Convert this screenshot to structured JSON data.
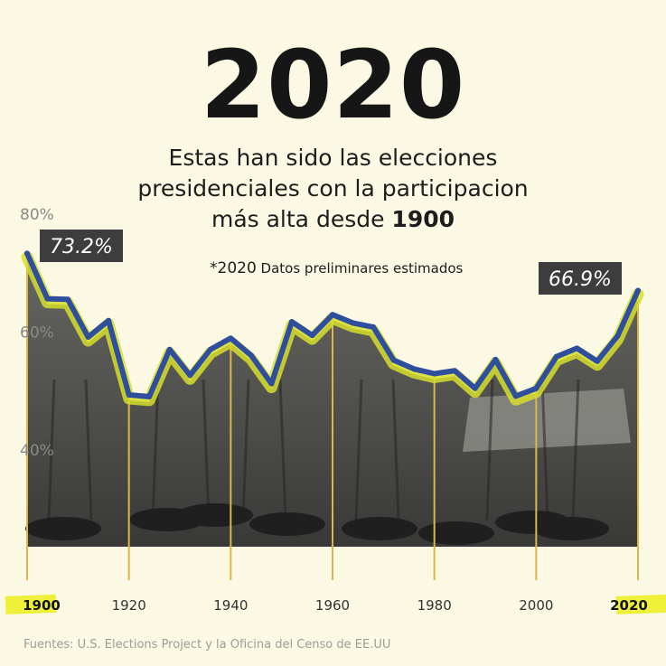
{
  "header": {
    "year": "2020",
    "subtitle_line1": "Estas han sido las elecciones",
    "subtitle_line2": "presidenciales con la participacion",
    "subtitle_line3_pre": "más alta desde ",
    "subtitle_line3_bold": "1900"
  },
  "note": {
    "star": "*2020",
    "text": " Datos preliminares estimados"
  },
  "footer": {
    "source": "Fuentes: U.S.  Elections Project y la Oficina del Censo de EE.UU"
  },
  "colors": {
    "background": "#fbf8e3",
    "line": "#2f4f9e",
    "glow": "#d6de2c",
    "drop_line": "#dcb64a",
    "highlight": "#eef03a",
    "callout_bg": "#3d3d3d"
  },
  "chart_data": {
    "type": "line",
    "x": [
      1900,
      1904,
      1908,
      1912,
      1916,
      1920,
      1924,
      1928,
      1932,
      1936,
      1940,
      1944,
      1948,
      1952,
      1956,
      1960,
      1964,
      1968,
      1972,
      1976,
      1980,
      1984,
      1988,
      1992,
      1996,
      2000,
      2004,
      2008,
      2012,
      2016,
      2020
    ],
    "series": [
      {
        "values": [
          73.2,
          65.5,
          65.4,
          59.0,
          61.8,
          49.2,
          48.9,
          56.9,
          52.5,
          56.9,
          58.8,
          55.9,
          51.1,
          61.6,
          59.3,
          62.8,
          61.4,
          60.7,
          55.1,
          53.6,
          52.8,
          53.3,
          50.3,
          55.2,
          49.0,
          50.3,
          55.7,
          57.1,
          54.9,
          59.2,
          66.9
        ]
      }
    ],
    "xticks": [
      "1900",
      "1920",
      "1940",
      "1960",
      "1980",
      "2000",
      "2020"
    ],
    "xtick_values": [
      1900,
      1920,
      1940,
      1960,
      1980,
      2000,
      2020
    ],
    "yticks": [
      "40%",
      "60%",
      "80%"
    ],
    "ytick_values": [
      40,
      60,
      80
    ],
    "ylim": [
      20,
      80
    ],
    "xlim": [
      1900,
      2020
    ],
    "annotations": [
      {
        "x": 1900,
        "label": "73.2%"
      },
      {
        "x": 2020,
        "label": "66.9%"
      }
    ]
  }
}
